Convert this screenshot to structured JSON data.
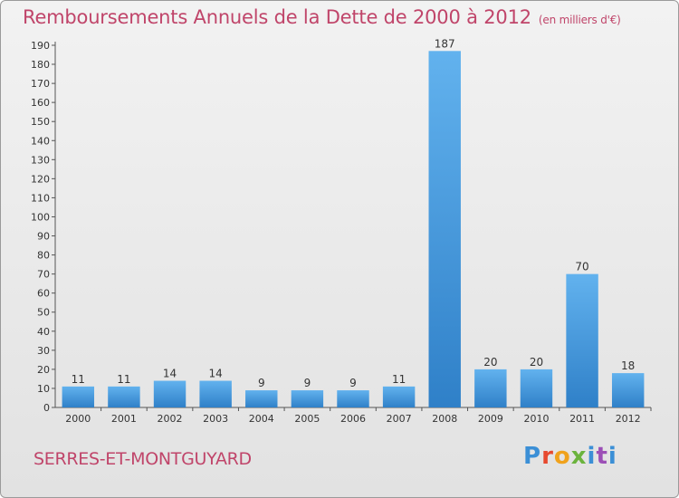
{
  "chart_data": {
    "type": "bar",
    "title": "Remboursements Annuels de la Dette de 2000 à 2012",
    "subtitle": "(en milliers d'€)",
    "xlabel": "",
    "ylabel": "",
    "categories": [
      "2000",
      "2001",
      "2002",
      "2003",
      "2004",
      "2005",
      "2006",
      "2007",
      "2008",
      "2009",
      "2010",
      "2011",
      "2012"
    ],
    "values": [
      11,
      11,
      14,
      14,
      9,
      9,
      9,
      11,
      187,
      20,
      20,
      70,
      18
    ],
    "ylim": [
      0,
      190
    ],
    "ytick_step": 10,
    "grid": false,
    "bar_color": "#4a9ee0"
  },
  "footer": {
    "commune": "SERRES-ET-MONTGUYARD",
    "logo": [
      "P",
      "r",
      "o",
      "x",
      "i",
      "t",
      "i"
    ]
  }
}
